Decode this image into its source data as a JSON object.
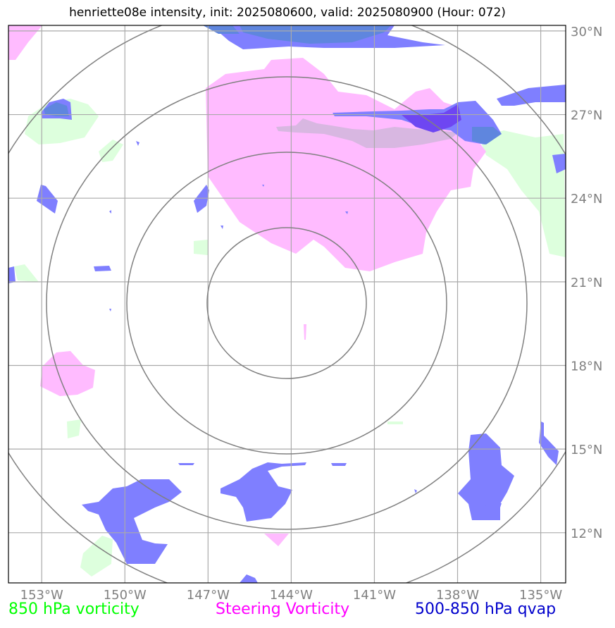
{
  "title": "henriette08e intensity, init: 2025080600, valid: 2025080900 (Hour: 072)",
  "map": {
    "lon_range": [
      -154.2,
      -134.1
    ],
    "lat_range": [
      10.2,
      30.2
    ],
    "lon_ticks": [
      {
        "value": -153,
        "label": "153°W"
      },
      {
        "value": -150,
        "label": "150°W"
      },
      {
        "value": -147,
        "label": "147°W"
      },
      {
        "value": -144,
        "label": "144°W"
      },
      {
        "value": -141,
        "label": "141°W"
      },
      {
        "value": -138,
        "label": "138°W"
      },
      {
        "value": -135,
        "label": "135°W"
      }
    ],
    "lat_ticks": [
      {
        "value": 30,
        "label": "30°N"
      },
      {
        "value": 27,
        "label": "27°N"
      },
      {
        "value": 24,
        "label": "24°N"
      },
      {
        "value": 21,
        "label": "21°N"
      },
      {
        "value": 18,
        "label": "18°N"
      },
      {
        "value": 15,
        "label": "15°N"
      },
      {
        "value": 12,
        "label": "12°N"
      }
    ],
    "gridlines": true,
    "range_rings": true
  },
  "legend": {
    "vorticity_850": {
      "label": "850 hPa vorticity",
      "color": "#00ff00"
    },
    "steering_vorticity": {
      "label": "Steering Vorticity",
      "color": "#ff00ff"
    },
    "qvap_500_850": {
      "label": "500-850 hPa qvap",
      "color": "#0000cc"
    }
  },
  "colors": {
    "vorticity_fill": "#ddffdd",
    "steering_fill": "#ffbbff",
    "qvap_fill": "#7f7fff",
    "qvap_dark": "#6e46f2",
    "overlap_fill": "#d8b7e1",
    "grid": "#aaaaaa",
    "ring": "#808080"
  }
}
